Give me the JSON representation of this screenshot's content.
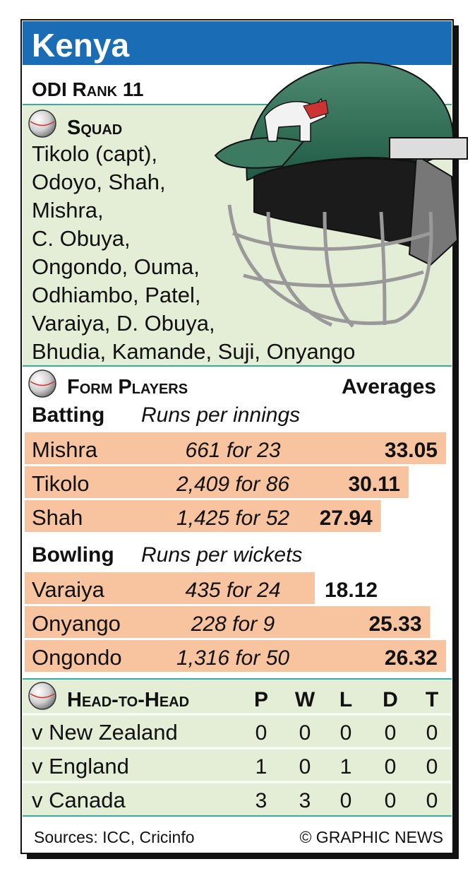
{
  "header": {
    "title": "Kenya",
    "rank": "ODI Rank 11"
  },
  "squad": {
    "heading": "Squad",
    "lines": [
      "Tikolo (capt),",
      "Odoyo, Shah,",
      "Mishra,",
      "C. Obuya,",
      "Ongondo, Ouma,",
      "Odhiambo, Patel,",
      "Varaiya, D. Obuya,",
      "Bhudia, Kamande, Suji, Onyango"
    ]
  },
  "form": {
    "heading": "Form Players",
    "averages_heading": "Averages",
    "batting": {
      "heading": "Batting",
      "subheading": "Runs per innings",
      "rows": [
        {
          "name": "Mishra",
          "detail": "661 for 23",
          "average": 33.05
        },
        {
          "name": "Tikolo",
          "detail": "2,409 for 86",
          "average": 30.11
        },
        {
          "name": "Shah",
          "detail": "1,425 for 52",
          "average": 27.94
        }
      ]
    },
    "bowling": {
      "heading": "Bowling",
      "subheading": "Runs per wickets",
      "rows": [
        {
          "name": "Varaiya",
          "detail": "435 for 24",
          "average": 18.12
        },
        {
          "name": "Onyango",
          "detail": "228 for 9",
          "average": 25.33
        },
        {
          "name": "Ongondo",
          "detail": "1,316 for 50",
          "average": 26.32
        }
      ]
    }
  },
  "head_to_head": {
    "heading": "Head-to-Head",
    "columns": [
      "P",
      "W",
      "L",
      "D",
      "T"
    ],
    "rows": [
      {
        "opponent": "v New Zealand",
        "values": [
          0,
          0,
          0,
          0,
          0
        ]
      },
      {
        "opponent": "v England",
        "values": [
          1,
          0,
          1,
          0,
          0
        ]
      },
      {
        "opponent": "v Canada",
        "values": [
          3,
          3,
          0,
          0,
          0
        ]
      }
    ]
  },
  "footer": {
    "sources": "Sources: ICC, Cricinfo",
    "credit": "© GRAPHIC NEWS"
  }
}
